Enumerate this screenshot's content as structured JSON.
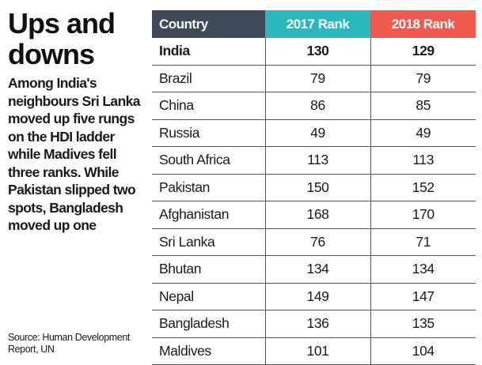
{
  "headline": {
    "line1": "Ups and",
    "line2": "downs"
  },
  "description": "Among India's neighbours Sri Lanka moved up five rungs on the HDI ladder while Madives fell three ranks. While Pakistan slipped two spots, Bangladesh moved up one",
  "source": "Source: Human Development Report, UN",
  "colors": {
    "country_header": "#3f4a59",
    "rank_2017_header": "#2bb8bc",
    "rank_2018_header": "#ee5a4f",
    "row_separator": "#555555"
  },
  "chart_data": {
    "type": "table",
    "columns": [
      "Country",
      "2017 Rank",
      "2018 Rank"
    ],
    "rows": [
      {
        "country": "India",
        "rank_2017": 130,
        "rank_2018": 129
      },
      {
        "country": "Brazil",
        "rank_2017": 79,
        "rank_2018": 79
      },
      {
        "country": "China",
        "rank_2017": 86,
        "rank_2018": 85
      },
      {
        "country": "Russia",
        "rank_2017": 49,
        "rank_2018": 49
      },
      {
        "country": "South Africa",
        "rank_2017": 113,
        "rank_2018": 113
      },
      {
        "country": "Pakistan",
        "rank_2017": 150,
        "rank_2018": 152
      },
      {
        "country": "Afghanistan",
        "rank_2017": 168,
        "rank_2018": 170
      },
      {
        "country": "Sri Lanka",
        "rank_2017": 76,
        "rank_2018": 71
      },
      {
        "country": "Bhutan",
        "rank_2017": 134,
        "rank_2018": 134
      },
      {
        "country": "Nepal",
        "rank_2017": 149,
        "rank_2018": 147
      },
      {
        "country": "Bangladesh",
        "rank_2017": 136,
        "rank_2018": 135
      },
      {
        "country": "Maldives",
        "rank_2017": 101,
        "rank_2018": 104
      }
    ]
  }
}
